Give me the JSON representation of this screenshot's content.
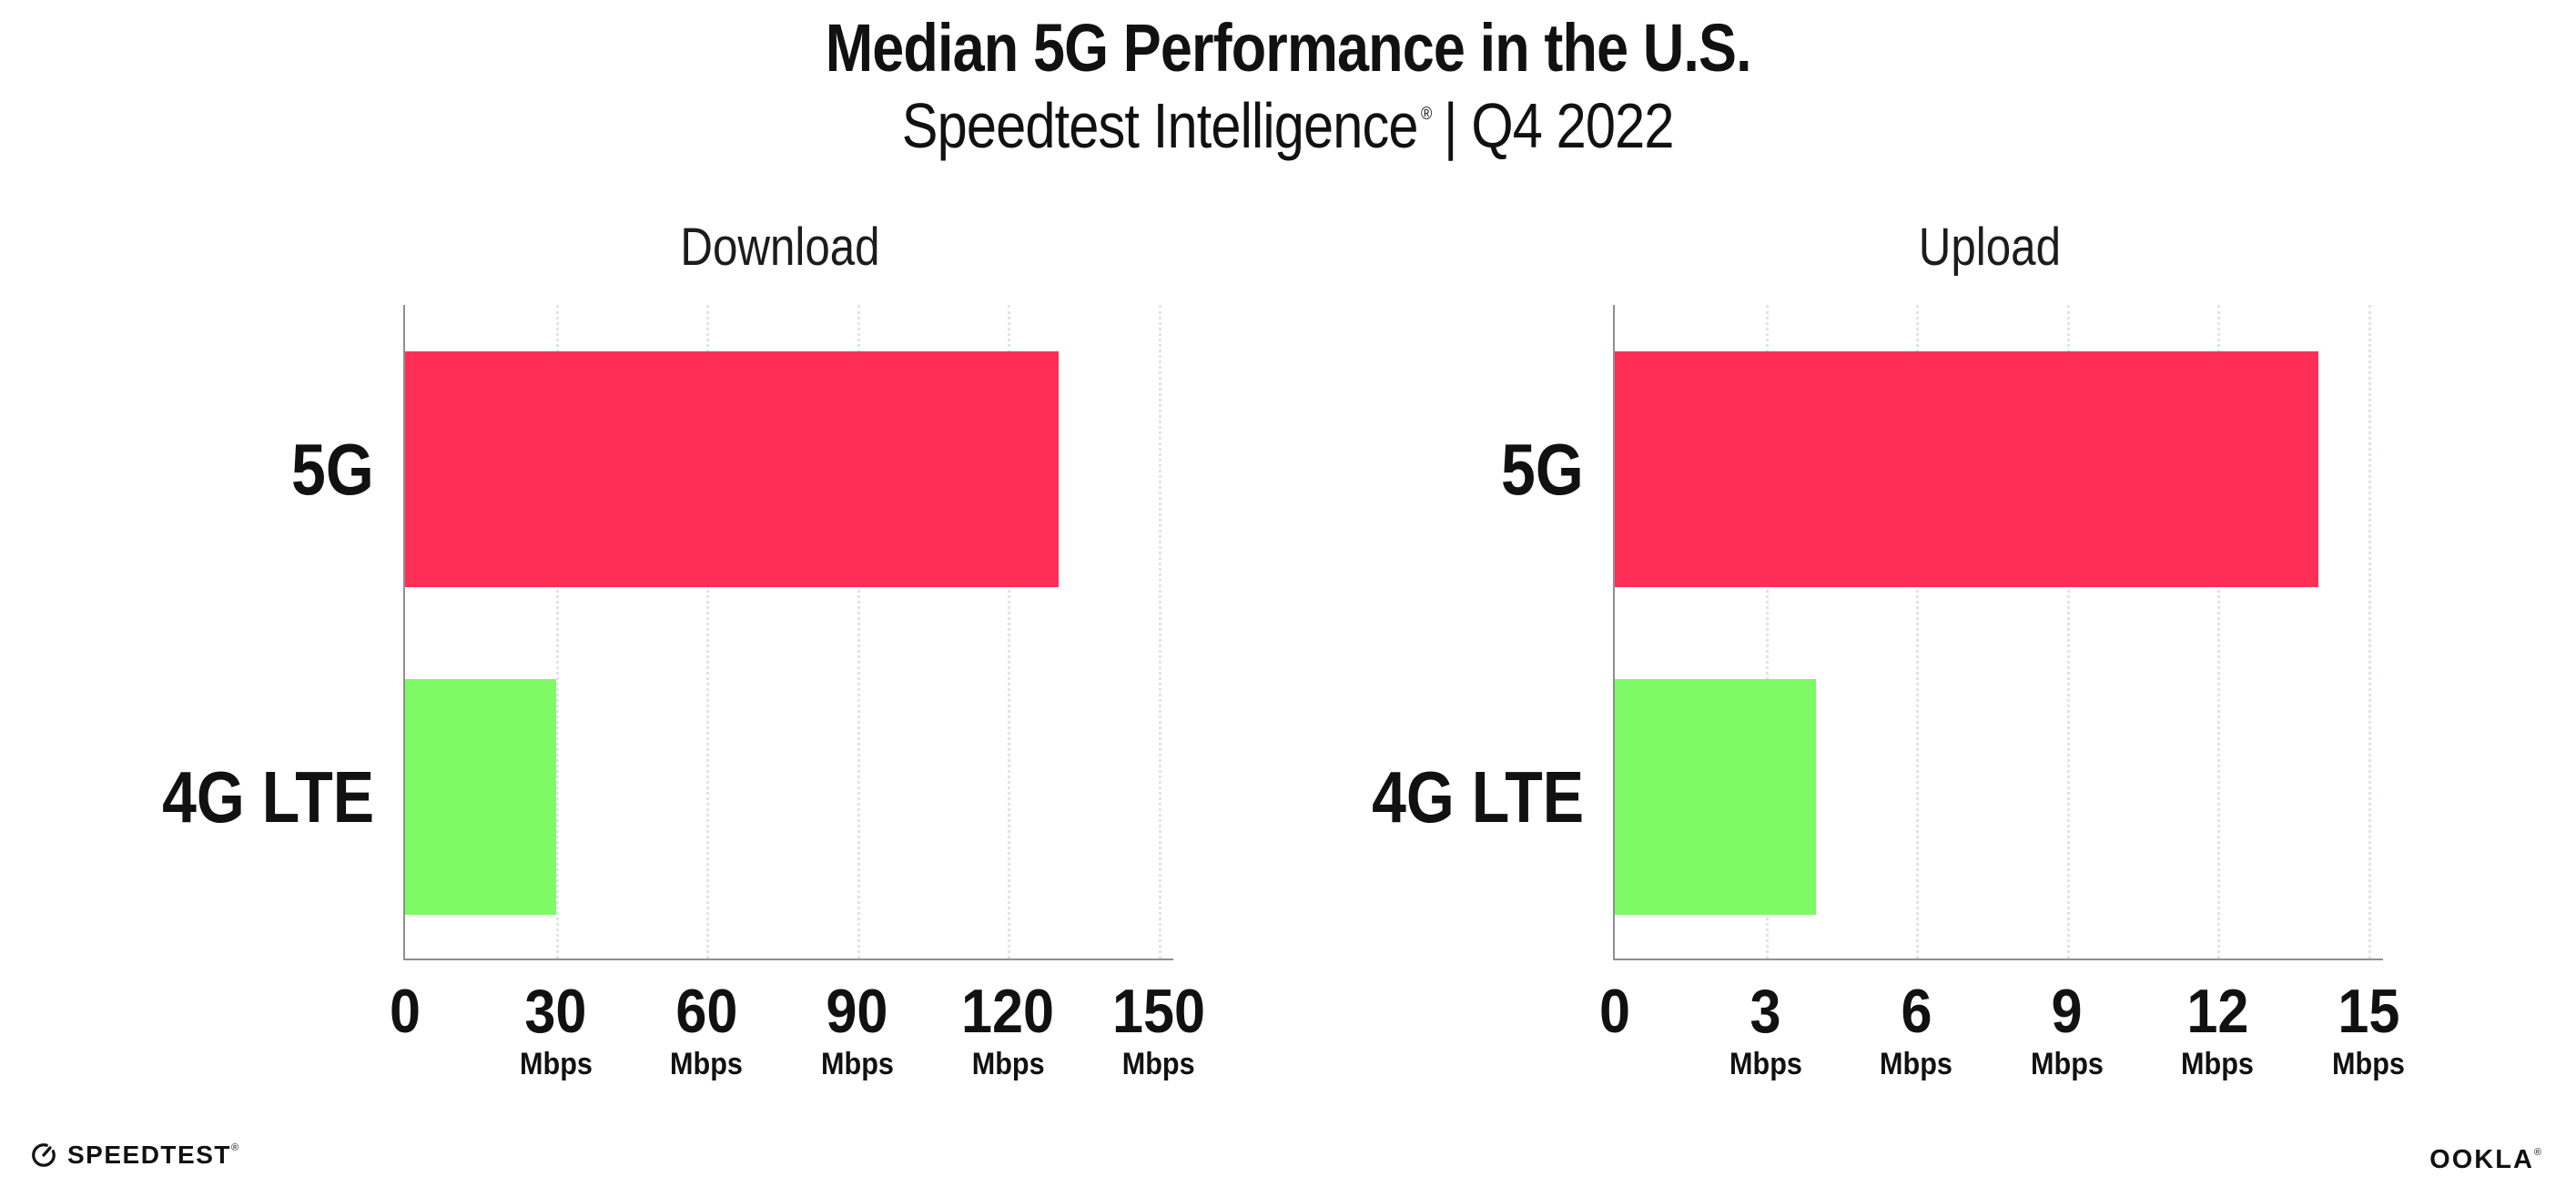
{
  "header": {
    "title": "Median 5G Performance in the U.S.",
    "subtitle": {
      "brand": "Speedtest Intelligence",
      "registered": "®",
      "period": "| Q4 2022"
    }
  },
  "chart_data": [
    {
      "type": "bar",
      "orientation": "horizontal",
      "title": "Download",
      "categories": [
        "5G",
        "4G LTE"
      ],
      "values": [
        130,
        30
      ],
      "unit": "Mbps",
      "xlim": [
        0,
        150
      ],
      "xticks": [
        0,
        30,
        60,
        90,
        120,
        150
      ],
      "bar_colors": [
        "#ff2e57",
        "#7dfa66"
      ],
      "gridlines": "vertical-dotted",
      "legend": "none"
    },
    {
      "type": "bar",
      "orientation": "horizontal",
      "title": "Upload",
      "categories": [
        "5G",
        "4G LTE"
      ],
      "values": [
        14,
        4
      ],
      "unit": "Mbps",
      "xlim": [
        0,
        15
      ],
      "xticks": [
        0,
        3,
        6,
        9,
        12,
        15
      ],
      "bar_colors": [
        "#ff2e57",
        "#7dfa66"
      ],
      "gridlines": "vertical-dotted",
      "legend": "none"
    }
  ],
  "footer": {
    "speedtest": {
      "label": "SPEEDTEST",
      "registered": "®"
    },
    "ookla": {
      "label": "OOKLA",
      "registered": "®"
    }
  },
  "colors": {
    "bar_5g": "#ff2e57",
    "bar_4g_lte": "#7dfa66",
    "axis": "#8e8e96",
    "gridline": "#e0e2ee",
    "text": "#111111",
    "background": "#ffffff"
  }
}
